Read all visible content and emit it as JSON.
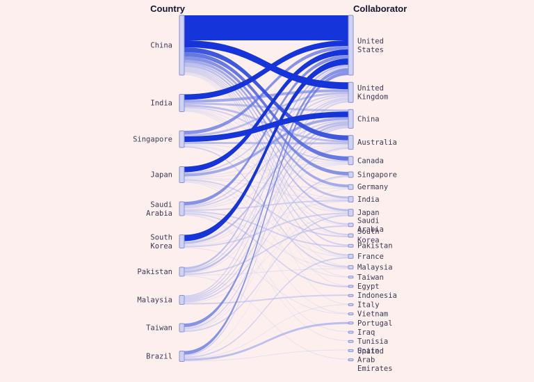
{
  "colors": {
    "background": "#fdefee",
    "flow_light": "#c5cbf1",
    "flow_dark": "#1535da",
    "node_fill": "#ced3f3",
    "node_stroke": "#8890d2",
    "label_color": "#3a3a52",
    "title_color": "#15152e"
  },
  "chart_data": {
    "type": "sankey",
    "left_axis_label": "Country",
    "right_axis_label": "Collaborator",
    "left_nodes": [
      "China",
      "India",
      "Singapore",
      "Japan",
      "Saudi Arabia",
      "South Korea",
      "Pakistan",
      "Malaysia",
      "Taiwan",
      "Brazil"
    ],
    "right_nodes": [
      "United States",
      "United Kingdom",
      "China",
      "Australia",
      "Canada",
      "Singapore",
      "Germany",
      "India",
      "Japan",
      "Saudi Arabia",
      "South Korea",
      "Pakistan",
      "France",
      "Malaysia",
      "Taiwan",
      "Egypt",
      "Indonesia",
      "Italy",
      "Vietnam",
      "Portugal",
      "Iraq",
      "Tunisia",
      "Spain",
      "United Arab Emirates"
    ],
    "links": [
      {
        "source": "China",
        "target": "United States",
        "value": 36
      },
      {
        "source": "China",
        "target": "United Kingdom",
        "value": 10
      },
      {
        "source": "China",
        "target": "Australia",
        "value": 7
      },
      {
        "source": "China",
        "target": "Canada",
        "value": 6
      },
      {
        "source": "China",
        "target": "Singapore",
        "value": 5
      },
      {
        "source": "China",
        "target": "Germany",
        "value": 4
      },
      {
        "source": "China",
        "target": "India",
        "value": 3
      },
      {
        "source": "China",
        "target": "Japan",
        "value": 3
      },
      {
        "source": "China",
        "target": "France",
        "value": 2
      },
      {
        "source": "China",
        "target": "South Korea",
        "value": 2
      },
      {
        "source": "China",
        "target": "Saudi Arabia",
        "value": 2
      },
      {
        "source": "China",
        "target": "Pakistan",
        "value": 2
      },
      {
        "source": "China",
        "target": "Malaysia",
        "value": 1
      },
      {
        "source": "China",
        "target": "Taiwan",
        "value": 1
      },
      {
        "source": "China",
        "target": "Egypt",
        "value": 1
      },
      {
        "source": "China",
        "target": "Italy",
        "value": 1
      },
      {
        "source": "India",
        "target": "United States",
        "value": 8
      },
      {
        "source": "India",
        "target": "United Kingdom",
        "value": 4
      },
      {
        "source": "India",
        "target": "China",
        "value": 3
      },
      {
        "source": "India",
        "target": "Australia",
        "value": 3
      },
      {
        "source": "India",
        "target": "Canada",
        "value": 2
      },
      {
        "source": "India",
        "target": "Germany",
        "value": 1
      },
      {
        "source": "India",
        "target": "Saudi Arabia",
        "value": 1
      },
      {
        "source": "India",
        "target": "France",
        "value": 1
      },
      {
        "source": "India",
        "target": "Japan",
        "value": 1
      },
      {
        "source": "India",
        "target": "South Korea",
        "value": 1
      },
      {
        "source": "Singapore",
        "target": "China",
        "value": 8
      },
      {
        "source": "Singapore",
        "target": "United States",
        "value": 5
      },
      {
        "source": "Singapore",
        "target": "United Kingdom",
        "value": 3
      },
      {
        "source": "Singapore",
        "target": "Australia",
        "value": 3
      },
      {
        "source": "Singapore",
        "target": "Canada",
        "value": 1
      },
      {
        "source": "Singapore",
        "target": "India",
        "value": 1
      },
      {
        "source": "Singapore",
        "target": "Malaysia",
        "value": 2
      },
      {
        "source": "Singapore",
        "target": "Japan",
        "value": 1
      },
      {
        "source": "Japan",
        "target": "United States",
        "value": 8
      },
      {
        "source": "Japan",
        "target": "China",
        "value": 4
      },
      {
        "source": "Japan",
        "target": "United Kingdom",
        "value": 2
      },
      {
        "source": "Japan",
        "target": "South Korea",
        "value": 2
      },
      {
        "source": "Japan",
        "target": "Germany",
        "value": 1
      },
      {
        "source": "Japan",
        "target": "Australia",
        "value": 1
      },
      {
        "source": "Japan",
        "target": "Canada",
        "value": 1
      },
      {
        "source": "Japan",
        "target": "France",
        "value": 1
      },
      {
        "source": "Japan",
        "target": "India",
        "value": 1
      },
      {
        "source": "Japan",
        "target": "Taiwan",
        "value": 1
      },
      {
        "source": "Japan",
        "target": "Vietnam",
        "value": 1
      },
      {
        "source": "Saudi Arabia",
        "target": "United States",
        "value": 5
      },
      {
        "source": "Saudi Arabia",
        "target": "Egypt",
        "value": 2
      },
      {
        "source": "Saudi Arabia",
        "target": "China",
        "value": 2
      },
      {
        "source": "Saudi Arabia",
        "target": "United Kingdom",
        "value": 2
      },
      {
        "source": "Saudi Arabia",
        "target": "India",
        "value": 2
      },
      {
        "source": "Saudi Arabia",
        "target": "Pakistan",
        "value": 2
      },
      {
        "source": "Saudi Arabia",
        "target": "Canada",
        "value": 1
      },
      {
        "source": "Saudi Arabia",
        "target": "Australia",
        "value": 1
      },
      {
        "source": "Saudi Arabia",
        "target": "Malaysia",
        "value": 1
      },
      {
        "source": "Saudi Arabia",
        "target": "Tunisia",
        "value": 1
      },
      {
        "source": "Saudi Arabia",
        "target": "Iraq",
        "value": 1
      },
      {
        "source": "South Korea",
        "target": "United States",
        "value": 9
      },
      {
        "source": "South Korea",
        "target": "China",
        "value": 3
      },
      {
        "source": "South Korea",
        "target": "Japan",
        "value": 2
      },
      {
        "source": "South Korea",
        "target": "United Kingdom",
        "value": 1
      },
      {
        "source": "South Korea",
        "target": "India",
        "value": 1
      },
      {
        "source": "South Korea",
        "target": "Canada",
        "value": 1
      },
      {
        "source": "South Korea",
        "target": "Australia",
        "value": 1
      },
      {
        "source": "South Korea",
        "target": "Vietnam",
        "value": 1
      },
      {
        "source": "Pakistan",
        "target": "China",
        "value": 3
      },
      {
        "source": "Pakistan",
        "target": "United States",
        "value": 3
      },
      {
        "source": "Pakistan",
        "target": "United Kingdom",
        "value": 2
      },
      {
        "source": "Pakistan",
        "target": "Saudi Arabia",
        "value": 2
      },
      {
        "source": "Pakistan",
        "target": "Australia",
        "value": 1
      },
      {
        "source": "Pakistan",
        "target": "Malaysia",
        "value": 1
      },
      {
        "source": "Pakistan",
        "target": "United Arab Emirates",
        "value": 1
      },
      {
        "source": "Malaysia",
        "target": "United Kingdom",
        "value": 2
      },
      {
        "source": "Malaysia",
        "target": "United States",
        "value": 2
      },
      {
        "source": "Malaysia",
        "target": "China",
        "value": 2
      },
      {
        "source": "Malaysia",
        "target": "Australia",
        "value": 2
      },
      {
        "source": "Malaysia",
        "target": "Singapore",
        "value": 2
      },
      {
        "source": "Malaysia",
        "target": "Indonesia",
        "value": 2
      },
      {
        "source": "Malaysia",
        "target": "Japan",
        "value": 1
      },
      {
        "source": "Taiwan",
        "target": "United States",
        "value": 5
      },
      {
        "source": "Taiwan",
        "target": "China",
        "value": 2
      },
      {
        "source": "Taiwan",
        "target": "Japan",
        "value": 2
      },
      {
        "source": "Taiwan",
        "target": "United Kingdom",
        "value": 1
      },
      {
        "source": "Taiwan",
        "target": "Australia",
        "value": 1
      },
      {
        "source": "Taiwan",
        "target": "Singapore",
        "value": 1
      },
      {
        "source": "Brazil",
        "target": "United States",
        "value": 5
      },
      {
        "source": "Brazil",
        "target": "United Kingdom",
        "value": 2
      },
      {
        "source": "Brazil",
        "target": "Portugal",
        "value": 3
      },
      {
        "source": "Brazil",
        "target": "Germany",
        "value": 1
      },
      {
        "source": "Brazil",
        "target": "France",
        "value": 2
      },
      {
        "source": "Brazil",
        "target": "Spain",
        "value": 1
      },
      {
        "source": "Brazil",
        "target": "Italy",
        "value": 1
      }
    ]
  }
}
